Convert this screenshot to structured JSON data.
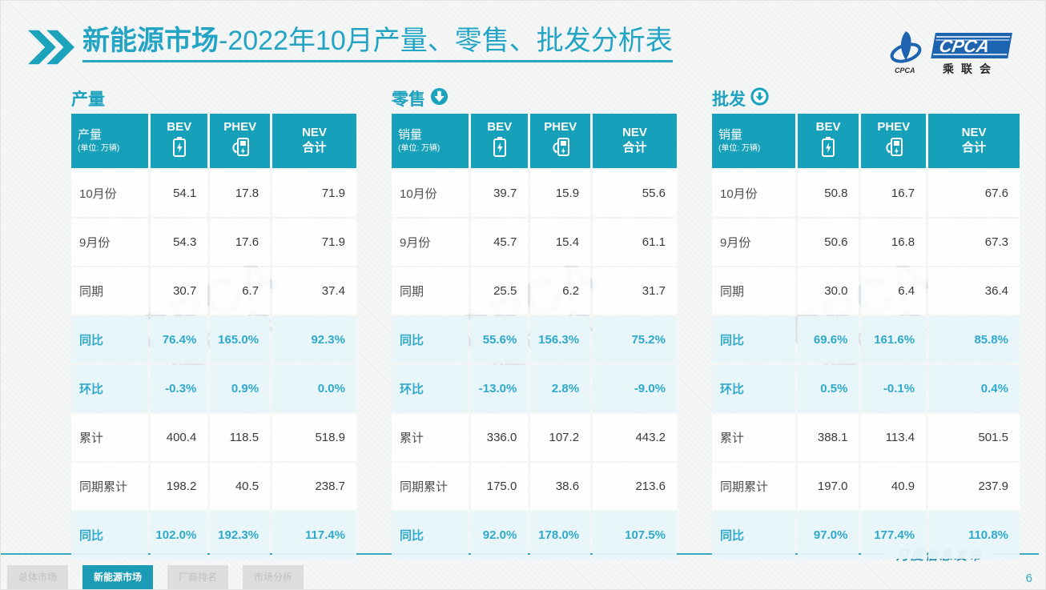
{
  "slide": {
    "title": {
      "bold": "新能源市场",
      "rest": "-2022年10月产量、零售、批发分析表"
    },
    "logo": {
      "emblem_sub": "CPCA",
      "name_en": "CPCA",
      "name_cn": "乘联会"
    },
    "watermark_en": "CPCA",
    "watermark_cn": "乘联会"
  },
  "icons": {
    "header_chevron": "double-chevron-right",
    "bev": "battery-icon",
    "phev": "charger-icon",
    "retail_arrow": "down-arrow-filled-circle",
    "wholesale_arrow": "down-arrow-outline-circle"
  },
  "colors": {
    "teal_header": "#17a0b9",
    "teal_title": "#23a4c4",
    "highlight_row_bg": "#e7f5fa",
    "highlight_text": "#2fa9cb",
    "logo_blue": "#1e63b0",
    "tab_active_bg": "#1b9bb5",
    "tab_inactive_bg": "#dcdddd"
  },
  "tables": [
    {
      "section": "产量",
      "head": {
        "label": "产量",
        "unit": "(单位: 万辆)",
        "bev": "BEV",
        "phev": "PHEV",
        "nev1": "NEV",
        "nev2": "合计"
      },
      "rows": [
        {
          "label": "10月份",
          "v": [
            "54.1",
            "17.8",
            "71.9"
          ],
          "hl": false
        },
        {
          "label": "9月份",
          "v": [
            "54.3",
            "17.6",
            "71.9"
          ],
          "hl": false
        },
        {
          "label": "同期",
          "v": [
            "30.7",
            "6.7",
            "37.4"
          ],
          "hl": false
        },
        {
          "label": "同比",
          "v": [
            "76.4%",
            "165.0%",
            "92.3%"
          ],
          "hl": true
        },
        {
          "label": "环比",
          "v": [
            "-0.3%",
            "0.9%",
            "0.0%"
          ],
          "hl": true
        },
        {
          "label": "累计",
          "v": [
            "400.4",
            "118.5",
            "518.9"
          ],
          "hl": false
        },
        {
          "label": "同期累计",
          "v": [
            "198.2",
            "40.5",
            "238.7"
          ],
          "hl": false
        },
        {
          "label": "同比",
          "v": [
            "102.0%",
            "192.3%",
            "117.4%"
          ],
          "hl": true
        }
      ]
    },
    {
      "section": "零售",
      "head": {
        "label": "销量",
        "unit": "(单位: 万辆)",
        "bev": "BEV",
        "phev": "PHEV",
        "nev1": "NEV",
        "nev2": "合计"
      },
      "rows": [
        {
          "label": "10月份",
          "v": [
            "39.7",
            "15.9",
            "55.6"
          ],
          "hl": false
        },
        {
          "label": "9月份",
          "v": [
            "45.7",
            "15.4",
            "61.1"
          ],
          "hl": false
        },
        {
          "label": "同期",
          "v": [
            "25.5",
            "6.2",
            "31.7"
          ],
          "hl": false
        },
        {
          "label": "同比",
          "v": [
            "55.6%",
            "156.3%",
            "75.2%"
          ],
          "hl": true
        },
        {
          "label": "环比",
          "v": [
            "-13.0%",
            "2.8%",
            "-9.0%"
          ],
          "hl": true
        },
        {
          "label": "累计",
          "v": [
            "336.0",
            "107.2",
            "443.2"
          ],
          "hl": false
        },
        {
          "label": "同期累计",
          "v": [
            "175.0",
            "38.6",
            "213.6"
          ],
          "hl": false
        },
        {
          "label": "同比",
          "v": [
            "92.0%",
            "178.0%",
            "107.5%"
          ],
          "hl": true
        }
      ]
    },
    {
      "section": "批发",
      "head": {
        "label": "销量",
        "unit": "(单位: 万辆)",
        "bev": "BEV",
        "phev": "PHEV",
        "nev1": "NEV",
        "nev2": "合计"
      },
      "rows": [
        {
          "label": "10月份",
          "v": [
            "50.8",
            "16.7",
            "67.6"
          ],
          "hl": false
        },
        {
          "label": "9月份",
          "v": [
            "50.6",
            "16.8",
            "67.3"
          ],
          "hl": false
        },
        {
          "label": "同期",
          "v": [
            "30.0",
            "6.4",
            "36.4"
          ],
          "hl": false
        },
        {
          "label": "同比",
          "v": [
            "69.6%",
            "161.6%",
            "85.8%"
          ],
          "hl": true
        },
        {
          "label": "环比",
          "v": [
            "0.5%",
            "-0.1%",
            "0.4%"
          ],
          "hl": true
        },
        {
          "label": "累计",
          "v": [
            "388.1",
            "113.4",
            "501.5"
          ],
          "hl": false
        },
        {
          "label": "同期累计",
          "v": [
            "197.0",
            "40.9",
            "237.9"
          ],
          "hl": false
        },
        {
          "label": "同比",
          "v": [
            "97.0%",
            "177.4%",
            "110.8%"
          ],
          "hl": true
        }
      ]
    }
  ],
  "footer": {
    "tabs": [
      {
        "label": "总体市场",
        "active": false
      },
      {
        "label": "新能源市场",
        "active": true
      },
      {
        "label": "厂商排名",
        "active": false
      },
      {
        "label": "市场分析",
        "active": false
      }
    ],
    "release": "月度信息发布",
    "page": "6"
  }
}
